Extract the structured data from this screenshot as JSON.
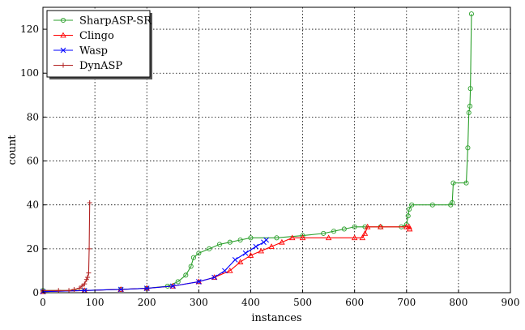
{
  "chart_data": {
    "type": "line",
    "xlabel": "instances",
    "ylabel": "count",
    "xlim": [
      0,
      900
    ],
    "ylim": [
      0,
      130
    ],
    "x_ticks": [
      0,
      100,
      200,
      300,
      400,
      500,
      600,
      700,
      800,
      900
    ],
    "y_ticks": [
      0,
      20,
      40,
      60,
      80,
      100,
      120
    ],
    "grid": true,
    "legend_position": "top-left",
    "series": [
      {
        "name": "SharpASP-SR",
        "color": "#2ca02c",
        "marker": "circle",
        "points": [
          [
            0,
            1
          ],
          [
            80,
            1
          ],
          [
            150,
            1.5
          ],
          [
            200,
            2
          ],
          [
            240,
            3
          ],
          [
            260,
            5
          ],
          [
            275,
            8
          ],
          [
            285,
            12
          ],
          [
            290,
            16
          ],
          [
            300,
            18
          ],
          [
            320,
            20
          ],
          [
            340,
            22
          ],
          [
            360,
            23
          ],
          [
            380,
            24
          ],
          [
            400,
            25
          ],
          [
            450,
            25
          ],
          [
            500,
            26
          ],
          [
            540,
            27
          ],
          [
            560,
            28
          ],
          [
            580,
            29
          ],
          [
            600,
            30
          ],
          [
            620,
            30
          ],
          [
            650,
            30
          ],
          [
            690,
            30
          ],
          [
            700,
            31
          ],
          [
            703,
            35
          ],
          [
            705,
            38
          ],
          [
            710,
            40
          ],
          [
            750,
            40
          ],
          [
            785,
            40
          ],
          [
            788,
            41
          ],
          [
            790,
            50
          ],
          [
            815,
            50
          ],
          [
            818,
            66
          ],
          [
            820,
            82
          ],
          [
            822,
            85
          ],
          [
            823,
            93
          ],
          [
            825,
            127
          ]
        ]
      },
      {
        "name": "Clingo",
        "color": "#ff0000",
        "marker": "triangle",
        "points": [
          [
            0,
            0.5
          ],
          [
            80,
            1
          ],
          [
            150,
            1.5
          ],
          [
            200,
            2
          ],
          [
            250,
            3
          ],
          [
            300,
            5
          ],
          [
            330,
            7
          ],
          [
            360,
            10
          ],
          [
            380,
            14
          ],
          [
            400,
            17
          ],
          [
            420,
            19
          ],
          [
            440,
            21
          ],
          [
            460,
            23
          ],
          [
            480,
            25
          ],
          [
            500,
            25
          ],
          [
            550,
            25
          ],
          [
            600,
            25
          ],
          [
            615,
            25
          ],
          [
            620,
            27
          ],
          [
            625,
            30
          ],
          [
            650,
            30
          ],
          [
            700,
            30
          ],
          [
            705,
            30
          ],
          [
            706,
            29
          ]
        ]
      },
      {
        "name": "Wasp",
        "color": "#0000ff",
        "marker": "x",
        "points": [
          [
            0,
            0.5
          ],
          [
            80,
            1
          ],
          [
            150,
            1.5
          ],
          [
            200,
            2
          ],
          [
            250,
            3
          ],
          [
            300,
            5
          ],
          [
            330,
            7
          ],
          [
            350,
            10
          ],
          [
            370,
            15
          ],
          [
            390,
            18
          ],
          [
            410,
            21
          ],
          [
            425,
            23
          ],
          [
            430,
            24
          ]
        ]
      },
      {
        "name": "DynASP",
        "color": "#b22222",
        "marker": "plus",
        "points": [
          [
            0,
            1
          ],
          [
            30,
            1
          ],
          [
            50,
            1
          ],
          [
            60,
            1.5
          ],
          [
            70,
            2
          ],
          [
            75,
            3
          ],
          [
            80,
            4
          ],
          [
            84,
            6
          ],
          [
            86,
            7
          ],
          [
            88,
            9
          ],
          [
            89,
            20
          ],
          [
            90,
            41
          ]
        ]
      }
    ]
  }
}
